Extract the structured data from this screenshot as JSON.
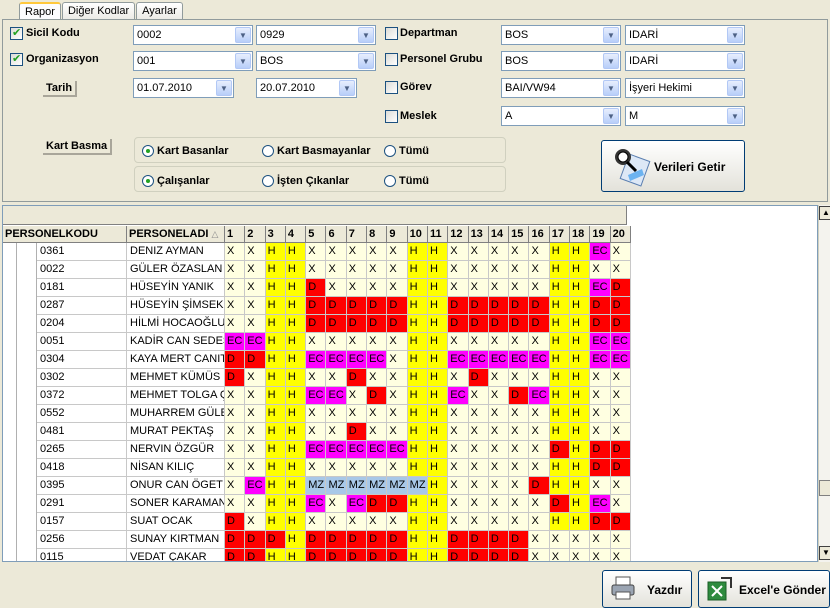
{
  "tabs": [
    "Rapor",
    "Diğer Kodlar",
    "Ayarlar"
  ],
  "filters": {
    "sicil": {
      "label": "Sicil Kodu",
      "from": "0002",
      "to": "0929"
    },
    "org": {
      "label": "Organizasyon",
      "from": "001",
      "to": "BOS"
    },
    "tarih": {
      "label": "Tarih",
      "from": "01.07.2010",
      "to": "20.07.2010"
    },
    "departman": {
      "label": "Departman",
      "from": "BOS",
      "to": "IDARİ"
    },
    "grup": {
      "label": "Personel Grubu",
      "from": "BOS",
      "to": "IDARİ"
    },
    "gorev": {
      "label": "Görev",
      "from": "BAI/VW94",
      "to": "İşyeri Hekimi"
    },
    "meslek": {
      "label": "Meslek",
      "from": "A",
      "to": "M"
    }
  },
  "kart": {
    "label": "Kart Basma",
    "r1": [
      "Kart Basanlar",
      "Kart Basmayanlar",
      "Tümü"
    ],
    "r2": [
      "Çalışanlar",
      "İşten Çıkanlar",
      "Tümü"
    ]
  },
  "buttons": {
    "getir": "Verileri Getir",
    "yazdir": "Yazdır",
    "excel": "Excel'e Gönder"
  },
  "grid": {
    "col_code": "PERSONELKODU",
    "col_name": "PERSONELADI",
    "days": [
      "1",
      "2",
      "3",
      "4",
      "5",
      "6",
      "7",
      "8",
      "9",
      "10",
      "11",
      "12",
      "13",
      "14",
      "15",
      "16",
      "17",
      "18",
      "19",
      "20"
    ],
    "rows": [
      {
        "code": "0361",
        "name": "DENIZ AYMAN",
        "d": [
          "X",
          "X",
          "H",
          "H",
          "X",
          "X",
          "X",
          "X",
          "X",
          "H",
          "H",
          "X",
          "X",
          "X",
          "X",
          "X",
          "H",
          "H",
          "EC",
          "X"
        ]
      },
      {
        "code": "0022",
        "name": "GÜLER ÖZASLAN",
        "d": [
          "X",
          "X",
          "H",
          "H",
          "X",
          "X",
          "X",
          "X",
          "X",
          "H",
          "H",
          "X",
          "X",
          "X",
          "X",
          "X",
          "H",
          "H",
          "X",
          "X"
        ]
      },
      {
        "code": "0181",
        "name": "HÜSEYİN YANIK",
        "d": [
          "X",
          "X",
          "H",
          "H",
          "D",
          "X",
          "X",
          "X",
          "X",
          "H",
          "H",
          "X",
          "X",
          "X",
          "X",
          "X",
          "H",
          "H",
          "EC",
          "D"
        ]
      },
      {
        "code": "0287",
        "name": "HÜSEYİN ŞİMSEK",
        "d": [
          "X",
          "X",
          "H",
          "H",
          "D",
          "D",
          "D",
          "D",
          "D",
          "H",
          "H",
          "D",
          "D",
          "D",
          "D",
          "D",
          "H",
          "H",
          "D",
          "D"
        ]
      },
      {
        "code": "0204",
        "name": "HİLMİ HOCAOĞLU",
        "d": [
          "X",
          "X",
          "H",
          "H",
          "D",
          "D",
          "D",
          "D",
          "D",
          "H",
          "H",
          "D",
          "D",
          "D",
          "D",
          "D",
          "H",
          "H",
          "D",
          "D"
        ]
      },
      {
        "code": "0051",
        "name": "KADİR CAN SEDES",
        "d": [
          "EC",
          "EC",
          "H",
          "H",
          "X",
          "X",
          "X",
          "X",
          "X",
          "H",
          "H",
          "X",
          "X",
          "X",
          "X",
          "X",
          "H",
          "H",
          "EC",
          "EC"
        ]
      },
      {
        "code": "0304",
        "name": "KAYA MERT CANITE",
        "d": [
          "D",
          "D",
          "H",
          "H",
          "EC",
          "EC",
          "EC",
          "EC",
          "X",
          "H",
          "H",
          "EC",
          "EC",
          "EC",
          "EC",
          "EC",
          "H",
          "H",
          "EC",
          "EC"
        ]
      },
      {
        "code": "0302",
        "name": "MEHMET KÜMÜS",
        "d": [
          "D",
          "X",
          "H",
          "H",
          "X",
          "X",
          "D",
          "X",
          "X",
          "H",
          "H",
          "X",
          "D",
          "X",
          "X",
          "X",
          "H",
          "H",
          "X",
          "X"
        ]
      },
      {
        "code": "0372",
        "name": "MEHMET TOLGA ÇU",
        "d": [
          "X",
          "X",
          "H",
          "H",
          "EC",
          "EC",
          "X",
          "D",
          "X",
          "H",
          "H",
          "EC",
          "X",
          "X",
          "D",
          "EC",
          "H",
          "H",
          "X",
          "X"
        ]
      },
      {
        "code": "0552",
        "name": "MUHARREM GÜLER",
        "d": [
          "X",
          "X",
          "H",
          "H",
          "X",
          "X",
          "X",
          "X",
          "X",
          "H",
          "H",
          "X",
          "X",
          "X",
          "X",
          "X",
          "H",
          "H",
          "X",
          "X"
        ]
      },
      {
        "code": "0481",
        "name": "MURAT PEKTAŞ",
        "d": [
          "X",
          "X",
          "H",
          "H",
          "X",
          "X",
          "D",
          "X",
          "X",
          "H",
          "H",
          "X",
          "X",
          "X",
          "X",
          "X",
          "H",
          "H",
          "X",
          "X"
        ]
      },
      {
        "code": "0265",
        "name": "NERVIN ÖZGÜR",
        "d": [
          "X",
          "X",
          "H",
          "H",
          "EC",
          "EC",
          "EC",
          "EC",
          "EC",
          "H",
          "H",
          "X",
          "X",
          "X",
          "X",
          "X",
          "D",
          "H",
          "D",
          "D"
        ]
      },
      {
        "code": "0418",
        "name": "NİSAN KILIÇ",
        "d": [
          "X",
          "X",
          "H",
          "H",
          "X",
          "X",
          "X",
          "X",
          "X",
          "H",
          "H",
          "X",
          "X",
          "X",
          "X",
          "X",
          "H",
          "H",
          "D",
          "D"
        ]
      },
      {
        "code": "0395",
        "name": "ONUR CAN ÖGET",
        "d": [
          "X",
          "EC",
          "H",
          "H",
          "MZ",
          "MZ",
          "MZ",
          "MZ",
          "MZ",
          "MZ",
          "H",
          "X",
          "X",
          "X",
          "X",
          "D",
          "H",
          "H",
          "X",
          "X"
        ]
      },
      {
        "code": "0291",
        "name": "SONER KARAMAN",
        "d": [
          "X",
          "X",
          "H",
          "H",
          "EC",
          "X",
          "EC",
          "D",
          "D",
          "H",
          "H",
          "X",
          "X",
          "X",
          "X",
          "X",
          "D",
          "H",
          "EC",
          "X"
        ]
      },
      {
        "code": "0157",
        "name": "SUAT OCAK",
        "d": [
          "D",
          "X",
          "H",
          "H",
          "X",
          "X",
          "X",
          "X",
          "X",
          "H",
          "H",
          "X",
          "X",
          "X",
          "X",
          "X",
          "H",
          "H",
          "D",
          "D"
        ]
      },
      {
        "code": "0256",
        "name": "SUNAY KIRTMAN",
        "d": [
          "D",
          "D",
          "D",
          "H",
          "D",
          "D",
          "D",
          "D",
          "D",
          "H",
          "H",
          "D",
          "D",
          "D",
          "D",
          "X",
          "X",
          "X",
          "X",
          "X"
        ]
      },
      {
        "code": "0115",
        "name": "VEDAT ÇAKAR",
        "d": [
          "D",
          "D",
          "H",
          "H",
          "D",
          "D",
          "D",
          "D",
          "D",
          "H",
          "H",
          "D",
          "D",
          "D",
          "D",
          "X",
          "X",
          "X",
          "X",
          "X"
        ]
      }
    ]
  }
}
